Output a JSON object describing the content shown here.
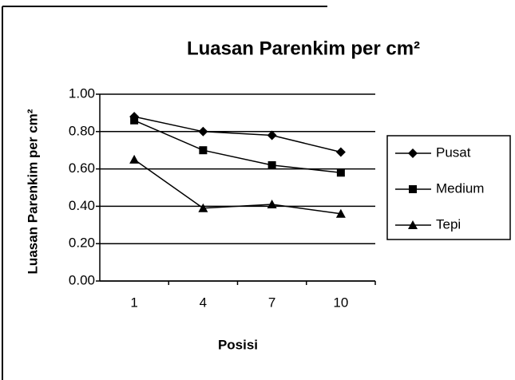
{
  "chart_data": {
    "type": "line",
    "title": "Luasan Parenkim per cm²",
    "x_label": "Posisi",
    "y_label": "Luasan Parenkim per cm²",
    "categories": [
      "1",
      "4",
      "7",
      "10"
    ],
    "series": [
      {
        "name": "Pusat",
        "color": "#000000",
        "marker": "diamond",
        "values": [
          0.88,
          0.8,
          0.78,
          0.69
        ]
      },
      {
        "name": "Medium",
        "color": "#000000",
        "marker": "square",
        "values": [
          0.86,
          0.7,
          0.62,
          0.58
        ]
      },
      {
        "name": "Tepi",
        "color": "#000000",
        "marker": "triangle",
        "values": [
          0.65,
          0.39,
          0.41,
          0.36
        ]
      }
    ],
    "ylim": [
      0,
      1
    ],
    "yticks": [
      {
        "value": 0,
        "label": "0.00"
      },
      {
        "value": 0.2,
        "label": "0.20"
      },
      {
        "value": 0.4,
        "label": "0.40"
      },
      {
        "value": 0.6,
        "label": "0.60"
      },
      {
        "value": 0.8,
        "label": "0.80"
      },
      {
        "value": 1,
        "label": "1.00"
      }
    ],
    "grid": true,
    "legend": "right"
  }
}
